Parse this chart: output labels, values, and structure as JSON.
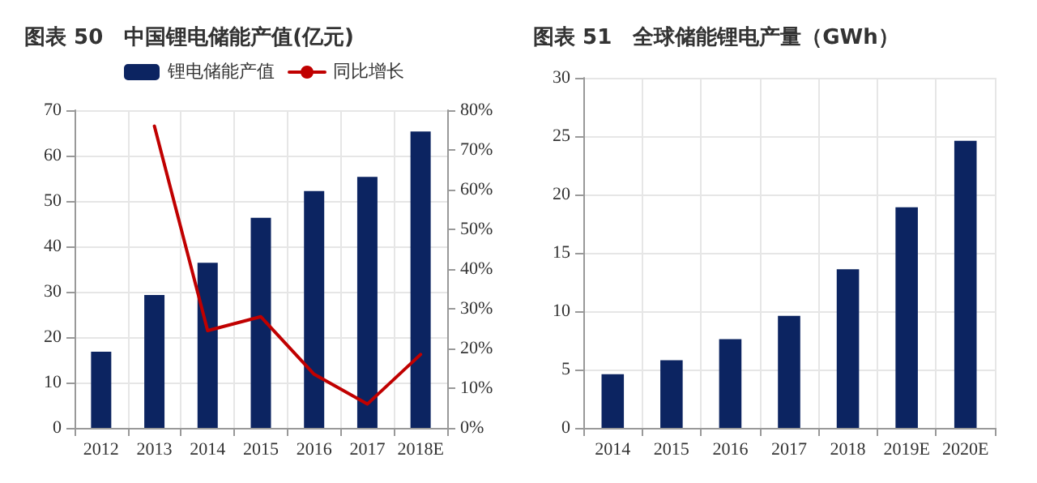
{
  "chart_data": [
    {
      "type": "bar",
      "title": "图表 50　中国锂电储能产值(亿元)",
      "categories": [
        "2012",
        "2013",
        "2014",
        "2015",
        "2016",
        "2017",
        "2018E"
      ],
      "series": [
        {
          "name": "锂电储能产值",
          "color": "#0c2461",
          "values": [
            16.8,
            29.3,
            36.4,
            46.3,
            52.2,
            55.3,
            65.3
          ]
        },
        {
          "name": "同比增长",
          "type": "line",
          "axis": "y2",
          "color": "#c00000",
          "values": [
            null,
            76,
            24.5,
            28,
            13.5,
            6,
            18.5
          ]
        }
      ],
      "ylim": [
        0,
        70
      ],
      "yticks": [
        0,
        10,
        20,
        30,
        40,
        50,
        60,
        70
      ],
      "y2lim": [
        0,
        80
      ],
      "y2ticks": [
        {
          "value": 0,
          "label": "0%"
        },
        {
          "value": 10,
          "label": "10%"
        },
        {
          "value": 20,
          "label": "20%"
        },
        {
          "value": 30,
          "label": "30%"
        },
        {
          "value": 40,
          "label": "40%"
        },
        {
          "value": 50,
          "label": "50%"
        },
        {
          "value": 60,
          "label": "60%"
        },
        {
          "value": 70,
          "label": "70%"
        },
        {
          "value": 80,
          "label": "80%"
        }
      ],
      "grid": true,
      "legend": "top",
      "marker": "none"
    },
    {
      "type": "bar",
      "title": "图表 51　全球储能锂电产量（GWh）",
      "categories": [
        "2014",
        "2015",
        "2016",
        "2017",
        "2018",
        "2019E",
        "2020E"
      ],
      "series": [
        {
          "color": "#0c2461",
          "values": [
            4.6,
            5.8,
            7.6,
            9.6,
            13.6,
            18.9,
            24.6
          ]
        }
      ],
      "ylim": [
        0,
        30
      ],
      "yticks": [
        0,
        5,
        10,
        15,
        20,
        25,
        30
      ],
      "grid": true
    }
  ]
}
